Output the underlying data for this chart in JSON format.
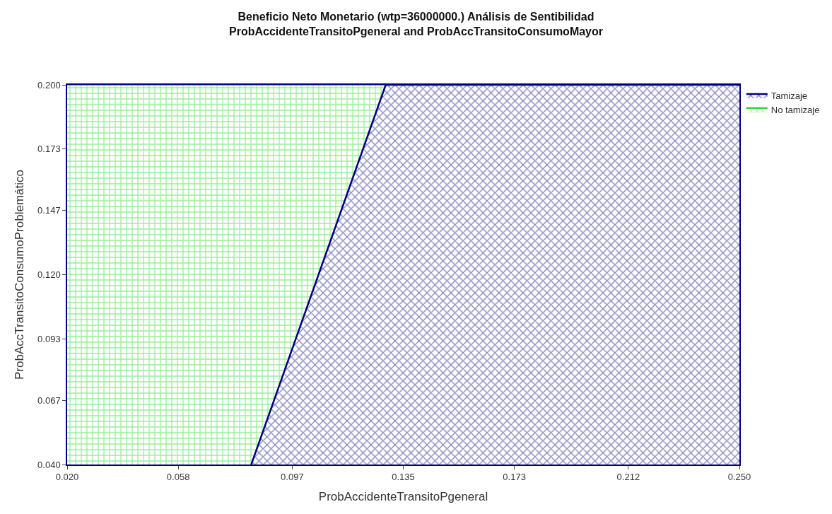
{
  "chart_data": {
    "type": "area",
    "title": "Beneficio Neto Monetario (wtp=36000000.) Análisis de Sentibilidad\nProbAccidenteTransitoPgeneral and ProbAccTransitoConsumoMayor",
    "xlabel": "ProbAccidenteTransitoPgeneral",
    "ylabel": "ProbAccTransitoConsumoProblemático",
    "series": [
      {
        "name": "Tamizaje",
        "color": "#000080",
        "x": [
          0.083,
          0.129,
          0.25
        ],
        "values": [
          0.04,
          0.2,
          0.2
        ]
      },
      {
        "name": "No tamizaje",
        "color": "#33dd33",
        "x": [
          0.02,
          0.129
        ],
        "values": [
          0.2,
          0.2
        ]
      }
    ],
    "xlim": [
      0.02,
      0.25
    ],
    "ylim": [
      0.04,
      0.2
    ],
    "xticks": [
      {
        "value": 0.02,
        "label": "0.020"
      },
      {
        "value": 0.058,
        "label": "0.058"
      },
      {
        "value": 0.097,
        "label": "0.097"
      },
      {
        "value": 0.135,
        "label": "0.135"
      },
      {
        "value": 0.173,
        "label": "0.173"
      },
      {
        "value": 0.212,
        "label": "0.212"
      },
      {
        "value": 0.25,
        "label": "0.250"
      }
    ],
    "yticks": [
      {
        "value": 0.04,
        "label": "0.040"
      },
      {
        "value": 0.067,
        "label": "0.067"
      },
      {
        "value": 0.093,
        "label": "0.093"
      },
      {
        "value": 0.12,
        "label": "0.120"
      },
      {
        "value": 0.147,
        "label": "0.147"
      },
      {
        "value": 0.173,
        "label": "0.173"
      },
      {
        "value": 0.2,
        "label": "0.200"
      }
    ],
    "legend": "top right"
  }
}
